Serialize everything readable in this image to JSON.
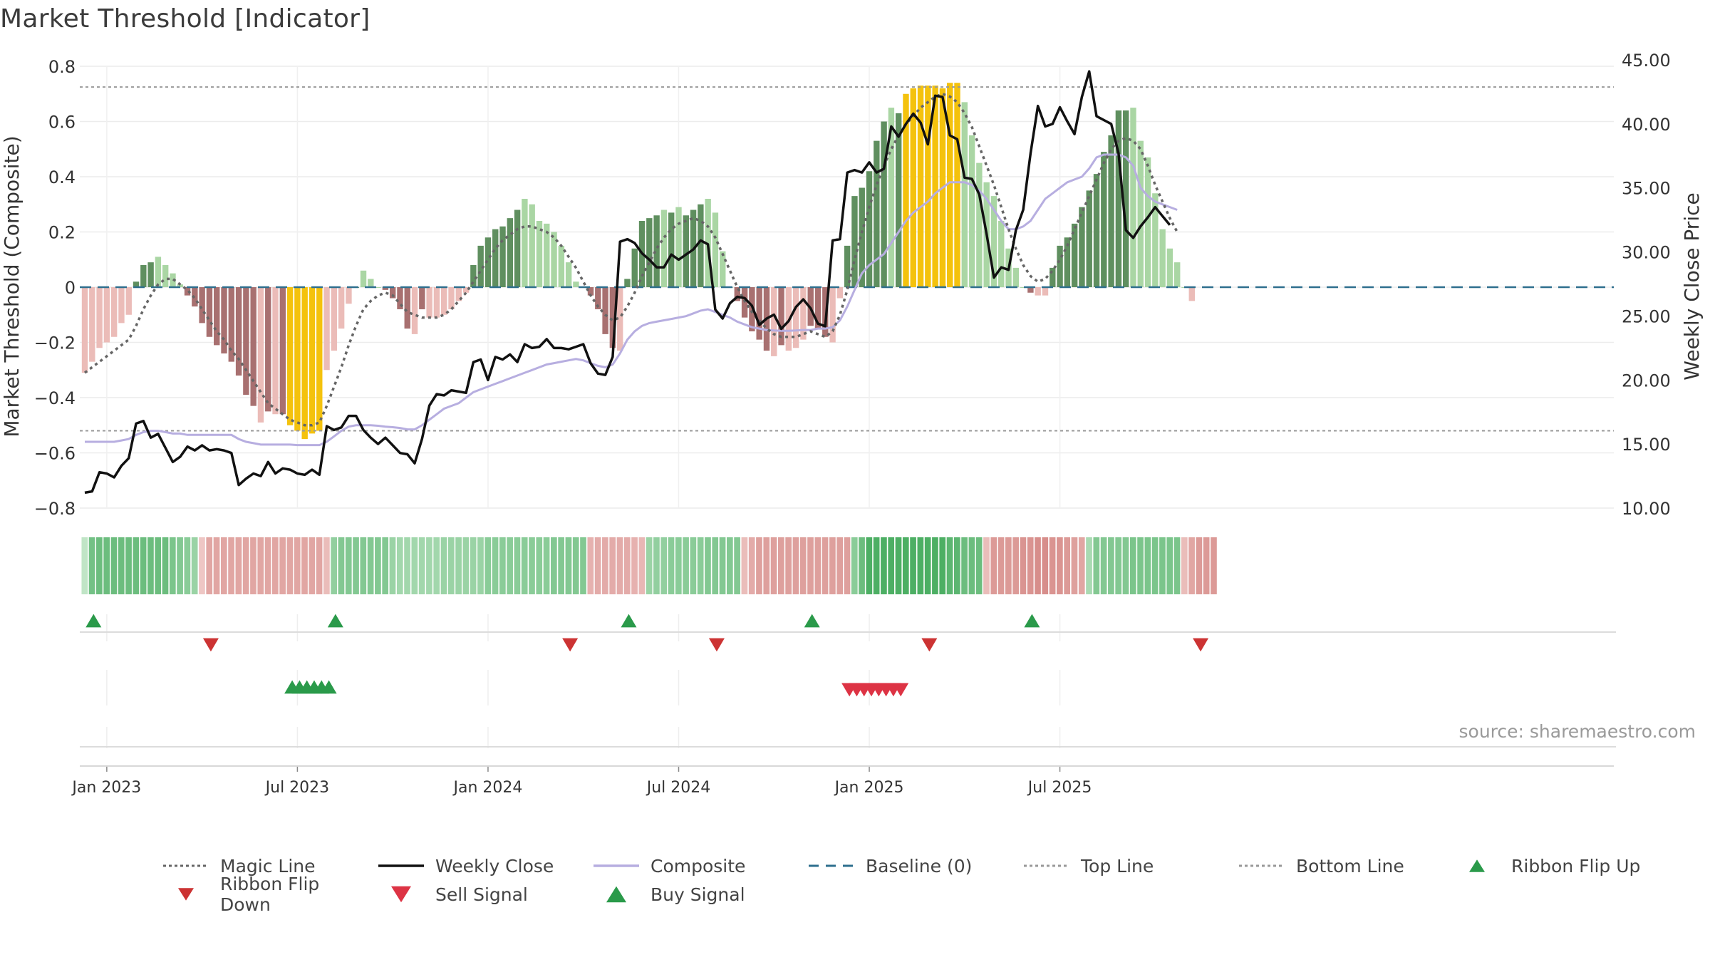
{
  "chart_data": {
    "type": "bar",
    "title": "Market Threshold [Indicator]",
    "ylabel_left": "Market Threshold (Composite)",
    "ylabel_right": "Weekly Close Price",
    "ylim_left": [
      -0.8,
      0.8
    ],
    "yticks_left": [
      0.8,
      0.6,
      0.4,
      0.2,
      0,
      -0.2,
      -0.4,
      -0.6,
      -0.8
    ],
    "ytick_labels_left": [
      "0.8",
      "0.6",
      "0.4",
      "0.2",
      "0",
      "−0.2",
      "−0.4",
      "−0.6",
      "−0.8"
    ],
    "ylim_right": [
      10.0,
      45.0
    ],
    "ytick_labels_right": [
      "45.00",
      "40.00",
      "35.00",
      "30.00",
      "25.00",
      "20.00",
      "15.00",
      "10.00"
    ],
    "x_ticks": [
      {
        "label": "Jan 2023",
        "week": 3
      },
      {
        "label": "Jul 2023",
        "week": 29
      },
      {
        "label": "Jan 2024",
        "week": 55
      },
      {
        "label": "Jul 2024",
        "week": 81
      },
      {
        "label": "Jan 2025",
        "week": 107
      },
      {
        "label": "Jul 2025",
        "week": 133
      }
    ],
    "top_line": 0.725,
    "bottom_line": -0.52,
    "composite_bars": [
      -0.31,
      -0.27,
      -0.22,
      -0.2,
      -0.18,
      -0.13,
      -0.1,
      0.02,
      0.08,
      0.09,
      0.11,
      0.08,
      0.05,
      0.01,
      -0.03,
      -0.07,
      -0.13,
      -0.18,
      -0.21,
      -0.24,
      -0.27,
      -0.32,
      -0.39,
      -0.43,
      -0.49,
      -0.45,
      -0.46,
      -0.46,
      -0.5,
      -0.52,
      -0.55,
      -0.53,
      -0.52,
      -0.3,
      -0.23,
      -0.15,
      -0.06,
      0.0,
      0.06,
      0.03,
      0.0,
      -0.01,
      -0.04,
      -0.08,
      -0.15,
      -0.17,
      -0.08,
      -0.11,
      -0.11,
      -0.1,
      -0.08,
      -0.05,
      -0.02,
      0.08,
      0.15,
      0.18,
      0.21,
      0.22,
      0.25,
      0.28,
      0.32,
      0.3,
      0.24,
      0.23,
      0.2,
      0.15,
      0.09,
      0.02,
      0.0,
      -0.03,
      -0.08,
      -0.17,
      -0.22,
      -0.23,
      0.03,
      0.14,
      0.24,
      0.25,
      0.26,
      0.28,
      0.27,
      0.29,
      0.26,
      0.28,
      0.3,
      0.32,
      0.27,
      0.13,
      0.0,
      -0.05,
      -0.11,
      -0.16,
      -0.19,
      -0.23,
      -0.25,
      -0.21,
      -0.23,
      -0.22,
      -0.19,
      -0.14,
      -0.15,
      -0.18,
      -0.2,
      -0.04,
      0.15,
      0.33,
      0.36,
      0.42,
      0.53,
      0.6,
      0.65,
      0.63,
      0.7,
      0.72,
      0.73,
      0.73,
      0.73,
      0.72,
      0.74,
      0.74,
      0.67,
      0.55,
      0.45,
      0.38,
      0.33,
      0.24,
      0.14,
      0.07,
      0.0,
      -0.02,
      -0.03,
      -0.03,
      0.07,
      0.15,
      0.18,
      0.23,
      0.29,
      0.35,
      0.41,
      0.49,
      0.55,
      0.64,
      0.64,
      0.65,
      0.53,
      0.47,
      0.34,
      0.21,
      0.14,
      0.09,
      0.0,
      -0.05
    ],
    "magic_line": [
      -0.31,
      -0.29,
      -0.27,
      -0.25,
      -0.23,
      -0.21,
      -0.19,
      -0.14,
      -0.08,
      -0.03,
      0.01,
      0.03,
      0.03,
      0.01,
      -0.01,
      -0.04,
      -0.08,
      -0.12,
      -0.16,
      -0.19,
      -0.23,
      -0.26,
      -0.3,
      -0.34,
      -0.38,
      -0.42,
      -0.44,
      -0.46,
      -0.48,
      -0.49,
      -0.5,
      -0.5,
      -0.49,
      -0.43,
      -0.36,
      -0.29,
      -0.21,
      -0.14,
      -0.08,
      -0.05,
      -0.03,
      -0.02,
      -0.03,
      -0.06,
      -0.09,
      -0.1,
      -0.11,
      -0.11,
      -0.11,
      -0.1,
      -0.08,
      -0.05,
      -0.02,
      0.02,
      0.06,
      0.1,
      0.14,
      0.17,
      0.19,
      0.21,
      0.22,
      0.22,
      0.21,
      0.2,
      0.18,
      0.15,
      0.11,
      0.07,
      0.02,
      -0.03,
      -0.07,
      -0.1,
      -0.12,
      -0.11,
      -0.07,
      -0.02,
      0.04,
      0.09,
      0.14,
      0.18,
      0.21,
      0.23,
      0.24,
      0.25,
      0.24,
      0.22,
      0.18,
      0.12,
      0.06,
      0.0,
      -0.05,
      -0.09,
      -0.12,
      -0.15,
      -0.17,
      -0.18,
      -0.18,
      -0.18,
      -0.17,
      -0.16,
      -0.17,
      -0.18,
      -0.16,
      -0.1,
      -0.01,
      0.1,
      0.2,
      0.29,
      0.37,
      0.44,
      0.5,
      0.55,
      0.59,
      0.62,
      0.65,
      0.67,
      0.69,
      0.7,
      0.69,
      0.67,
      0.63,
      0.58,
      0.51,
      0.44,
      0.37,
      0.29,
      0.21,
      0.14,
      0.08,
      0.04,
      0.02,
      0.03,
      0.06,
      0.1,
      0.15,
      0.21,
      0.27,
      0.33,
      0.39,
      0.45,
      0.5,
      0.53,
      0.54,
      0.53,
      0.5,
      0.44,
      0.37,
      0.31,
      0.25,
      0.2
    ],
    "composite_line": [
      -0.56,
      -0.56,
      -0.56,
      -0.56,
      -0.56,
      -0.555,
      -0.55,
      -0.535,
      -0.525,
      -0.52,
      -0.52,
      -0.525,
      -0.53,
      -0.53,
      -0.535,
      -0.535,
      -0.535,
      -0.535,
      -0.535,
      -0.535,
      -0.535,
      -0.55,
      -0.56,
      -0.565,
      -0.57,
      -0.57,
      -0.57,
      -0.57,
      -0.57,
      -0.572,
      -0.572,
      -0.572,
      -0.572,
      -0.56,
      -0.54,
      -0.52,
      -0.505,
      -0.5,
      -0.5,
      -0.5,
      -0.502,
      -0.505,
      -0.507,
      -0.51,
      -0.515,
      -0.515,
      -0.5,
      -0.48,
      -0.46,
      -0.44,
      -0.43,
      -0.42,
      -0.4,
      -0.38,
      -0.37,
      -0.36,
      -0.35,
      -0.34,
      -0.33,
      -0.32,
      -0.31,
      -0.3,
      -0.29,
      -0.28,
      -0.275,
      -0.27,
      -0.265,
      -0.26,
      -0.265,
      -0.275,
      -0.285,
      -0.29,
      -0.28,
      -0.24,
      -0.19,
      -0.16,
      -0.14,
      -0.13,
      -0.125,
      -0.12,
      -0.115,
      -0.11,
      -0.105,
      -0.095,
      -0.085,
      -0.08,
      -0.09,
      -0.1,
      -0.11,
      -0.125,
      -0.135,
      -0.145,
      -0.15,
      -0.155,
      -0.157,
      -0.158,
      -0.158,
      -0.157,
      -0.155,
      -0.155,
      -0.15,
      -0.15,
      -0.145,
      -0.12,
      -0.07,
      -0.01,
      0.05,
      0.08,
      0.1,
      0.12,
      0.16,
      0.2,
      0.24,
      0.27,
      0.29,
      0.31,
      0.34,
      0.36,
      0.38,
      0.38,
      0.38,
      0.37,
      0.35,
      0.32,
      0.28,
      0.24,
      0.21,
      0.21,
      0.22,
      0.24,
      0.28,
      0.32,
      0.34,
      0.36,
      0.38,
      0.39,
      0.4,
      0.43,
      0.47,
      0.48,
      0.48,
      0.48,
      0.47,
      0.44,
      0.36,
      0.33,
      0.31,
      0.3,
      0.29,
      0.28
    ],
    "weekly_close": [
      11.2,
      11.3,
      12.8,
      12.7,
      12.4,
      13.3,
      13.9,
      16.6,
      16.8,
      15.5,
      15.8,
      14.7,
      13.6,
      14.0,
      14.8,
      14.5,
      14.9,
      14.5,
      14.6,
      14.5,
      14.3,
      11.8,
      12.3,
      12.7,
      12.5,
      13.6,
      12.7,
      13.1,
      13.0,
      12.7,
      12.6,
      13.0,
      12.6,
      16.4,
      16.1,
      16.3,
      17.2,
      17.2,
      16.1,
      15.5,
      15.0,
      15.5,
      14.9,
      14.3,
      14.2,
      13.5,
      15.4,
      18.0,
      18.9,
      18.8,
      19.2,
      19.1,
      19.0,
      21.4,
      21.6,
      20.0,
      21.8,
      21.6,
      22.0,
      21.4,
      22.8,
      22.5,
      22.6,
      23.2,
      22.5,
      22.5,
      22.4,
      22.6,
      22.8,
      21.3,
      20.5,
      20.4,
      21.8,
      30.8,
      31.0,
      30.7,
      29.9,
      29.4,
      28.8,
      28.8,
      29.8,
      29.4,
      29.8,
      30.2,
      30.9,
      30.6,
      25.5,
      24.8,
      26.0,
      26.5,
      26.4,
      25.8,
      24.3,
      24.8,
      25.1,
      24.0,
      24.6,
      25.7,
      26.3,
      25.6,
      24.4,
      24.2,
      30.9,
      31.0,
      36.2,
      36.4,
      36.2,
      37.0,
      36.2,
      36.5,
      39.8,
      39.0,
      40.0,
      40.8,
      40.1,
      38.4,
      42.2,
      42.1,
      39.1,
      38.8,
      35.8,
      35.7,
      34.5,
      31.4,
      28.0,
      28.8,
      28.6,
      31.7,
      33.3,
      37.7,
      41.4,
      39.8,
      40.0,
      41.3,
      40.2,
      39.2,
      42.1,
      44.1,
      40.6,
      40.3,
      40.0,
      37.7,
      31.7,
      31.1,
      32.0,
      32.7,
      33.5,
      32.8,
      32.1
    ],
    "ribbon_values": [
      0.05,
      0.55,
      0.6,
      0.6,
      0.6,
      0.6,
      0.6,
      0.6,
      0.6,
      0.6,
      0.6,
      0.6,
      0.5,
      0.45,
      0.4,
      0.3,
      -0.12,
      -0.4,
      -0.4,
      -0.4,
      -0.4,
      -0.4,
      -0.4,
      -0.4,
      -0.4,
      -0.4,
      -0.4,
      -0.4,
      -0.4,
      -0.4,
      -0.4,
      -0.4,
      -0.4,
      -0.2,
      0.35,
      0.45,
      0.45,
      0.45,
      0.45,
      0.45,
      0.45,
      0.45,
      0.3,
      0.25,
      0.25,
      0.25,
      0.25,
      0.25,
      0.25,
      0.3,
      0.3,
      0.3,
      0.3,
      0.3,
      0.3,
      0.4,
      0.4,
      0.4,
      0.4,
      0.4,
      0.4,
      0.4,
      0.4,
      0.4,
      0.45,
      0.45,
      0.45,
      0.45,
      0.45,
      -0.3,
      -0.35,
      -0.35,
      -0.35,
      -0.35,
      -0.35,
      -0.3,
      -0.25,
      0.3,
      0.35,
      0.35,
      0.4,
      0.4,
      0.4,
      0.4,
      0.4,
      0.45,
      0.45,
      0.45,
      0.45,
      0.45,
      -0.2,
      -0.35,
      -0.45,
      -0.45,
      -0.45,
      -0.45,
      -0.45,
      -0.45,
      -0.45,
      -0.45,
      -0.45,
      -0.45,
      -0.45,
      -0.45,
      -0.45,
      0.4,
      0.6,
      0.8,
      0.8,
      0.8,
      0.8,
      0.8,
      0.8,
      0.8,
      0.8,
      0.8,
      0.8,
      0.8,
      0.7,
      0.7,
      0.6,
      0.6,
      0.6,
      -0.2,
      -0.5,
      -0.5,
      -0.5,
      -0.5,
      -0.55,
      -0.55,
      -0.6,
      -0.6,
      -0.55,
      -0.55,
      -0.5,
      -0.45,
      -0.4,
      0.2,
      0.45,
      0.45,
      0.45,
      0.45,
      0.45,
      0.5,
      0.5,
      0.5,
      0.5,
      0.5,
      0.5,
      0.5,
      -0.2,
      -0.4,
      -0.5,
      -0.5,
      -0.5
    ],
    "ribbon_flip_up_weeks": [
      1,
      34,
      74,
      99,
      129
    ],
    "ribbon_flip_down_weeks": [
      17,
      66,
      86,
      115,
      152
    ],
    "buy_signal_weeks": [
      28,
      29,
      30,
      31,
      32,
      33
    ],
    "sell_signal_weeks": [
      104,
      105,
      106,
      107,
      108,
      109,
      110,
      111
    ],
    "source": "source: sharemaestro.com"
  },
  "legend": {
    "row1": [
      {
        "label": "Magic Line",
        "kind": "dotted",
        "color": "#666666"
      },
      {
        "label": "Weekly Close",
        "kind": "solid",
        "color": "#111111"
      },
      {
        "label": "Composite",
        "kind": "solid",
        "color": "#b7aee0"
      },
      {
        "label": "Baseline (0)",
        "kind": "dashed",
        "color": "#2e6f8e"
      },
      {
        "label": "Top Line",
        "kind": "dotted",
        "color": "#999999"
      },
      {
        "label": "Bottom Line",
        "kind": "dotted",
        "color": "#999999"
      },
      {
        "label": "Ribbon Flip Up",
        "kind": "tri-up",
        "color": "#2a9a4a"
      }
    ],
    "row2": [
      {
        "label": "Ribbon Flip Down",
        "kind": "tri-down",
        "color": "#cc3333"
      },
      {
        "label": "Sell Signal",
        "kind": "tri-down-big",
        "color": "#dd3344"
      },
      {
        "label": "Buy Signal",
        "kind": "tri-up-big",
        "color": "#2a9a4a"
      }
    ]
  },
  "colors": {
    "strong_green": "#5f8f5f",
    "light_green": "#aad6a4",
    "strong_red": "#a87070",
    "light_red": "#ebbcb8",
    "extreme": "#f4c20d",
    "baseline": "#2e6f8e"
  }
}
